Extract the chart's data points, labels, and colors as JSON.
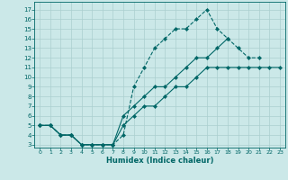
{
  "xlabel": "Humidex (Indice chaleur)",
  "bg_color": "#cbe8e8",
  "line_color": "#006666",
  "grid_color": "#aacfcf",
  "xlim": [
    -0.5,
    23.5
  ],
  "ylim": [
    2.7,
    17.8
  ],
  "xticks": [
    0,
    1,
    2,
    3,
    4,
    5,
    6,
    7,
    8,
    9,
    10,
    11,
    12,
    13,
    14,
    15,
    16,
    17,
    18,
    19,
    20,
    21,
    22,
    23
  ],
  "yticks": [
    3,
    4,
    5,
    6,
    7,
    8,
    9,
    10,
    11,
    12,
    13,
    14,
    15,
    16,
    17
  ],
  "curve1_y": [
    5,
    5,
    4,
    4,
    3,
    3,
    3,
    3,
    4,
    9,
    11,
    13,
    14,
    15,
    15,
    16,
    17,
    15,
    14,
    13,
    12,
    12,
    null,
    null
  ],
  "curve2_y": [
    5,
    5,
    4,
    4,
    3,
    3,
    3,
    3,
    6,
    7,
    8,
    9,
    9,
    10,
    11,
    12,
    12,
    13,
    14,
    null,
    null,
    null,
    null,
    null
  ],
  "curve3_y": [
    5,
    5,
    4,
    4,
    3,
    3,
    3,
    3,
    5,
    6,
    7,
    7,
    8,
    9,
    9,
    10,
    11,
    11,
    11,
    11,
    11,
    11,
    11,
    11
  ]
}
